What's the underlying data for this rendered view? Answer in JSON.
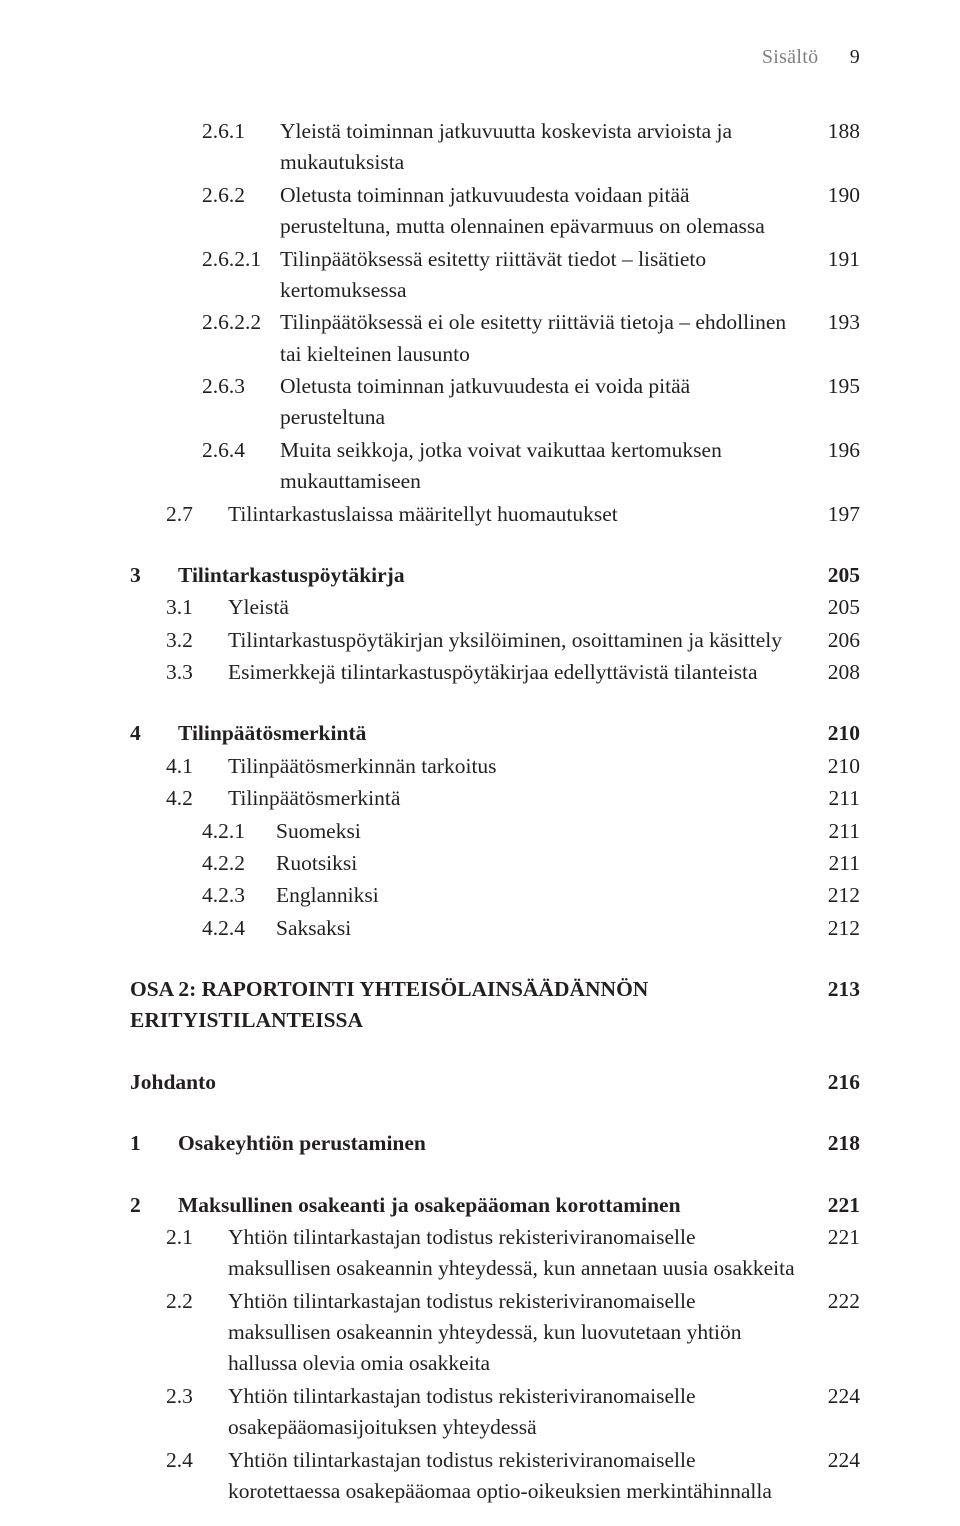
{
  "colors": {
    "text": "#231f20",
    "muted": "#808083",
    "background": "#ffffff"
  },
  "typography": {
    "base_family": "serif",
    "base_size_pt": 16,
    "line_height": 1.46
  },
  "running_head": {
    "label": "Sisältö",
    "page": "9"
  },
  "blocks": [
    {
      "rows": [
        {
          "level": "261",
          "num": "2.6.1",
          "text": "Yleistä toiminnan jatkuvuutta koskevista arvioista ja mukautuksista",
          "page": "188"
        },
        {
          "level": "261",
          "num": "2.6.2",
          "text": "Oletusta toiminnan jatkuvuudesta voidaan pitää perusteltuna, mutta olennainen epävarmuus on olemassa",
          "page": "190"
        },
        {
          "level": "261",
          "num": "2.6.2.1",
          "text": "Tilinpäätöksessä esitetty riittävät tiedot – lisätieto kertomuksessa",
          "page": "191"
        },
        {
          "level": "261",
          "num": "2.6.2.2",
          "text": "Tilinpäätöksessä ei ole esitetty riittäviä tietoja – ehdollinen tai kielteinen lausunto",
          "page": "193"
        },
        {
          "level": "261",
          "num": "2.6.3",
          "text": "Oletusta toiminnan jatkuvuudesta ei voida pitää perusteltuna",
          "page": "195"
        },
        {
          "level": "261",
          "num": "2.6.4",
          "text": "Muita seikkoja, jotka voivat vaikuttaa kertomuksen mukauttamiseen",
          "page": "196"
        },
        {
          "level": "27",
          "num": "2.7",
          "text": "Tilintarkastuslaissa määritellyt huomautukset",
          "page": "197"
        }
      ]
    },
    {
      "rows": [
        {
          "level": "sec",
          "bold": true,
          "num": "3",
          "text": "Tilintarkastuspöytäkirja",
          "page": "205"
        },
        {
          "level": "1",
          "num": "3.1",
          "text": "Yleistä",
          "page": "205"
        },
        {
          "level": "1",
          "num": "3.2",
          "text": "Tilintarkastuspöytäkirjan yksilöiminen, osoittaminen ja käsittely",
          "page": "206"
        },
        {
          "level": "1",
          "num": "3.3",
          "text": "Esimerkkejä tilintarkastuspöytäkirjaa edellyttävistä tilanteista",
          "page": "208"
        }
      ]
    },
    {
      "rows": [
        {
          "level": "sec",
          "bold": true,
          "num": "4",
          "text": "Tilinpäätösmerkintä",
          "page": "210"
        },
        {
          "level": "1",
          "num": "4.1",
          "text": "Tilinpäätösmerkinnän tarkoitus",
          "page": "210"
        },
        {
          "level": "1",
          "num": "4.2",
          "text": "Tilinpäätösmerkintä",
          "page": "211"
        },
        {
          "level": "2",
          "num": "4.2.1",
          "text": "Suomeksi",
          "page": "211"
        },
        {
          "level": "2",
          "num": "4.2.2",
          "text": "Ruotsiksi",
          "page": "211"
        },
        {
          "level": "2",
          "num": "4.2.3",
          "text": "Englanniksi",
          "page": "212"
        },
        {
          "level": "2",
          "num": "4.2.4",
          "text": "Saksaksi",
          "page": "212"
        }
      ]
    },
    {
      "rows": [
        {
          "level": "sec",
          "bold": true,
          "num": "",
          "text": "OSA 2: RAPORTOINTI YHTEISÖLAINSÄÄDÄNNÖN ERITYISTILANTEISSA",
          "page": "213"
        }
      ]
    },
    {
      "rows": [
        {
          "level": "sec",
          "bold": true,
          "num": "",
          "text": "Johdanto",
          "page": "216"
        }
      ]
    },
    {
      "rows": [
        {
          "level": "sec",
          "bold": true,
          "num": "1",
          "text": "Osakeyhtiön perustaminen",
          "page": "218"
        }
      ]
    },
    {
      "rows": [
        {
          "level": "sec",
          "bold": true,
          "num": "2",
          "text": "Maksullinen osakeanti ja osakepääoman korottaminen",
          "page": "221"
        },
        {
          "level": "1",
          "num": "2.1",
          "text": "Yhtiön tilintarkastajan todistus rekisteriviranomaiselle maksullisen osakeannin yhteydessä, kun annetaan uusia osakkeita",
          "page": "221"
        },
        {
          "level": "1",
          "num": "2.2",
          "text": "Yhtiön tilintarkastajan todistus rekisteriviranomaiselle maksullisen osakeannin yhteydessä, kun luovutetaan yhtiön hallussa olevia omia osakkeita",
          "page": "222"
        },
        {
          "level": "1",
          "num": "2.3",
          "text": "Yhtiön tilintarkastajan todistus rekisteriviranomaiselle osakepääomasijoituksen yhteydessä",
          "page": "224"
        },
        {
          "level": "1",
          "num": "2.4",
          "text": "Yhtiön tilintarkastajan todistus rekisteriviranomaiselle korotettaessa osakepääomaa optio-oikeuksien merkintähinnalla",
          "page": "224"
        }
      ]
    }
  ]
}
